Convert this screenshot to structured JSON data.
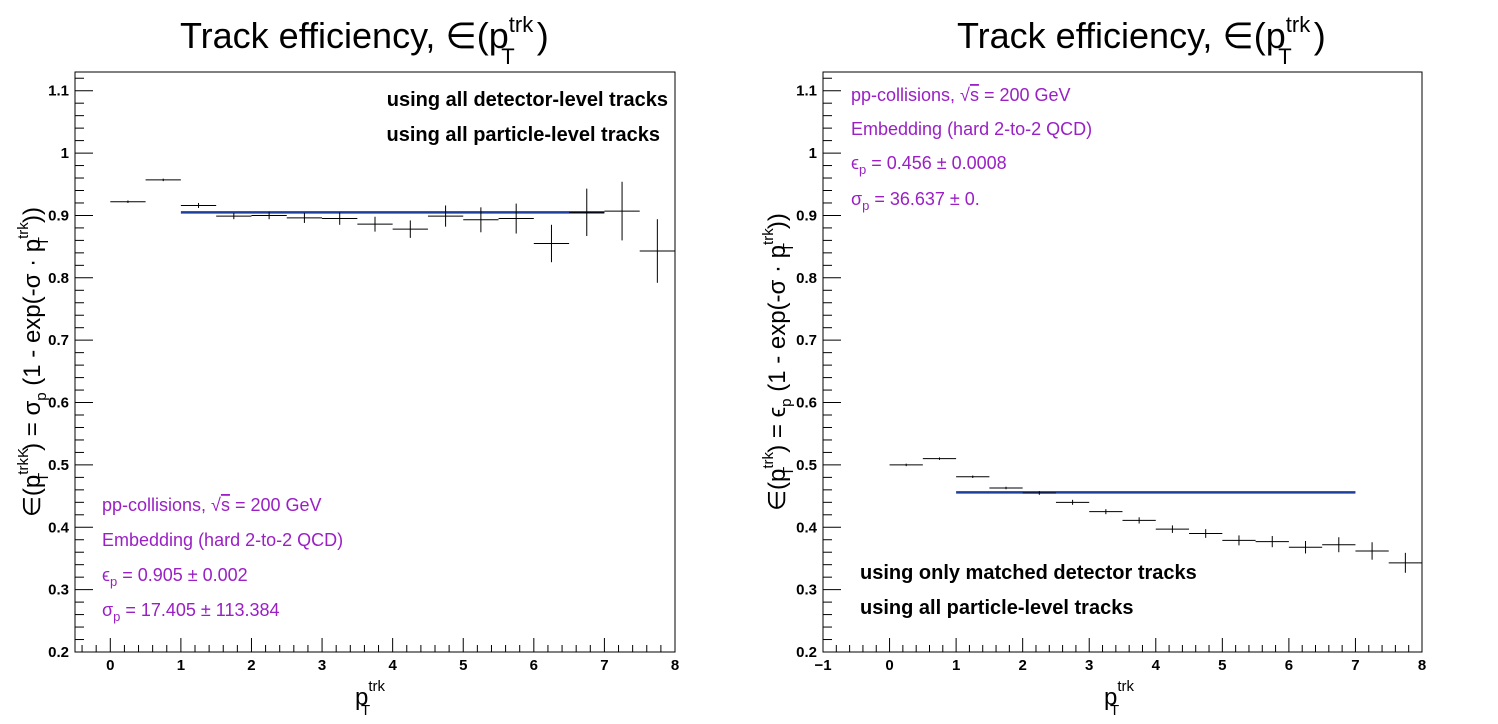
{
  "colors": {
    "fit": "#1f3f9f",
    "info": "#9a1fc4",
    "points": "#000000"
  },
  "chart_data": [
    {
      "type": "scatter",
      "title": "Track efficiency, ∈(p",
      "title_sup": "trk",
      "title_sub": "T",
      "title_end": ")",
      "xlabel": "p",
      "xlabel_sup": "trk",
      "xlabel_sub": "T",
      "ylabel": "∈(p",
      "ylabel_sup": "trkK",
      "ylabel_sub": "T",
      "ylabel_rest": ") = σ",
      "ylabel_rest_sub": "p",
      "ylabel_end": " (1 - exp(-σ · p",
      "ylabel_end_sup": "trk",
      "ylabel_end_sub": "T",
      "ylabel_close": "))",
      "xlim": [
        -0.5,
        8
      ],
      "ylim": [
        0.2,
        1.13
      ],
      "xticks": [
        0,
        1,
        2,
        3,
        4,
        5,
        6,
        7,
        8
      ],
      "yticks": [
        0.2,
        0.3,
        0.4,
        0.5,
        0.6,
        0.7,
        0.8,
        0.9,
        1,
        1.1
      ],
      "ytick_labels": [
        "0.2",
        "0.3",
        "0.4",
        "0.5",
        "0.6",
        "0.7",
        "0.8",
        "0.9",
        "1",
        "1.1"
      ],
      "points": [
        {
          "x": 0.25,
          "y": 0.922,
          "xerr": 0.25,
          "yerr": 0.002
        },
        {
          "x": 0.75,
          "y": 0.957,
          "xerr": 0.25,
          "yerr": 0.002
        },
        {
          "x": 1.25,
          "y": 0.916,
          "xerr": 0.25,
          "yerr": 0.004
        },
        {
          "x": 1.75,
          "y": 0.899,
          "xerr": 0.25,
          "yerr": 0.005
        },
        {
          "x": 2.25,
          "y": 0.9,
          "xerr": 0.25,
          "yerr": 0.006
        },
        {
          "x": 2.75,
          "y": 0.896,
          "xerr": 0.25,
          "yerr": 0.008
        },
        {
          "x": 3.25,
          "y": 0.895,
          "xerr": 0.25,
          "yerr": 0.01
        },
        {
          "x": 3.75,
          "y": 0.886,
          "xerr": 0.25,
          "yerr": 0.012
        },
        {
          "x": 4.25,
          "y": 0.878,
          "xerr": 0.25,
          "yerr": 0.014
        },
        {
          "x": 4.75,
          "y": 0.899,
          "xerr": 0.25,
          "yerr": 0.017
        },
        {
          "x": 5.25,
          "y": 0.893,
          "xerr": 0.25,
          "yerr": 0.02
        },
        {
          "x": 5.75,
          "y": 0.895,
          "xerr": 0.25,
          "yerr": 0.024
        },
        {
          "x": 6.25,
          "y": 0.855,
          "xerr": 0.25,
          "yerr": 0.03
        },
        {
          "x": 6.75,
          "y": 0.905,
          "xerr": 0.25,
          "yerr": 0.038
        },
        {
          "x": 7.25,
          "y": 0.907,
          "xerr": 0.25,
          "yerr": 0.047
        },
        {
          "x": 7.75,
          "y": 0.843,
          "xerr": 0.25,
          "yerr": 0.051
        }
      ],
      "fit": {
        "x_start": 1,
        "x_end": 7,
        "y": 0.905
      },
      "notes": [
        "using all detector-level tracks",
        "using all particle-level tracks"
      ],
      "notes_position": "top-right",
      "info": {
        "line1": "pp-collisions, ",
        "line1_sqrt": "√",
        "line1_s": "s",
        "line1_end": " = 200 GeV",
        "line2": "Embedding (hard 2-to-2 QCD)",
        "line3_sym": "ϵ",
        "line3_sub": "p",
        "line3_val": " = 0.905 ± 0.002",
        "line4_sym": "σ",
        "line4_sub": "p",
        "line4_val": " = 17.405 ± 113.384"
      },
      "info_position": "bottom-left"
    },
    {
      "type": "scatter",
      "title": "Track efficiency, ∈(p",
      "title_sup": "trk",
      "title_sub": "T",
      "title_end": ")",
      "xlabel": "p",
      "xlabel_sup": "trk",
      "xlabel_sub": "T",
      "ylabel": "∈(p",
      "ylabel_sup": "trk",
      "ylabel_sub": "T",
      "ylabel_rest": ") = ϵ",
      "ylabel_rest_sub": "p",
      "ylabel_end": " (1 - exp(-σ · p",
      "ylabel_end_sup": "trk",
      "ylabel_end_sub": "T",
      "ylabel_close": "))",
      "xlim": [
        -1,
        8
      ],
      "ylim": [
        0.2,
        1.13
      ],
      "xticks": [
        -1,
        0,
        1,
        2,
        3,
        4,
        5,
        6,
        7,
        8
      ],
      "xtick_labels": [
        "−1",
        "0",
        "1",
        "2",
        "3",
        "4",
        "5",
        "6",
        "7",
        "8"
      ],
      "yticks": [
        0.2,
        0.3,
        0.4,
        0.5,
        0.6,
        0.7,
        0.8,
        0.9,
        1,
        1.1
      ],
      "ytick_labels": [
        "0.2",
        "0.3",
        "0.4",
        "0.5",
        "0.6",
        "0.7",
        "0.8",
        "0.9",
        "1",
        "1.1"
      ],
      "points": [
        {
          "x": 0.25,
          "y": 0.5,
          "xerr": 0.25,
          "yerr": 0.002
        },
        {
          "x": 0.75,
          "y": 0.51,
          "xerr": 0.25,
          "yerr": 0.002
        },
        {
          "x": 1.25,
          "y": 0.481,
          "xerr": 0.25,
          "yerr": 0.002
        },
        {
          "x": 1.75,
          "y": 0.463,
          "xerr": 0.25,
          "yerr": 0.002
        },
        {
          "x": 2.25,
          "y": 0.455,
          "xerr": 0.25,
          "yerr": 0.003
        },
        {
          "x": 2.75,
          "y": 0.44,
          "xerr": 0.25,
          "yerr": 0.004
        },
        {
          "x": 3.25,
          "y": 0.425,
          "xerr": 0.25,
          "yerr": 0.004
        },
        {
          "x": 3.75,
          "y": 0.411,
          "xerr": 0.25,
          "yerr": 0.005
        },
        {
          "x": 4.25,
          "y": 0.397,
          "xerr": 0.25,
          "yerr": 0.006
        },
        {
          "x": 4.75,
          "y": 0.39,
          "xerr": 0.25,
          "yerr": 0.007
        },
        {
          "x": 5.25,
          "y": 0.379,
          "xerr": 0.25,
          "yerr": 0.008
        },
        {
          "x": 5.75,
          "y": 0.377,
          "xerr": 0.25,
          "yerr": 0.009
        },
        {
          "x": 6.25,
          "y": 0.368,
          "xerr": 0.25,
          "yerr": 0.01
        },
        {
          "x": 6.75,
          "y": 0.372,
          "xerr": 0.25,
          "yerr": 0.012
        },
        {
          "x": 7.25,
          "y": 0.362,
          "xerr": 0.25,
          "yerr": 0.014
        },
        {
          "x": 7.75,
          "y": 0.343,
          "xerr": 0.25,
          "yerr": 0.016
        }
      ],
      "fit": {
        "x_start": 1,
        "x_end": 7,
        "y": 0.456
      },
      "notes": [
        "using only matched detector tracks",
        "using all particle-level tracks"
      ],
      "notes_position": "bottom-left",
      "info": {
        "line1": "pp-collisions, ",
        "line1_sqrt": "√",
        "line1_s": "s",
        "line1_end": " = 200 GeV",
        "line2": "Embedding (hard 2-to-2 QCD)",
        "line3_sym": "ϵ",
        "line3_sub": "p",
        "line3_val": " = 0.456 ± 0.0008",
        "line4_sym": "σ",
        "line4_sub": "p",
        "line4_val": " = 36.637 ± 0."
      },
      "info_position": "top-left"
    }
  ]
}
